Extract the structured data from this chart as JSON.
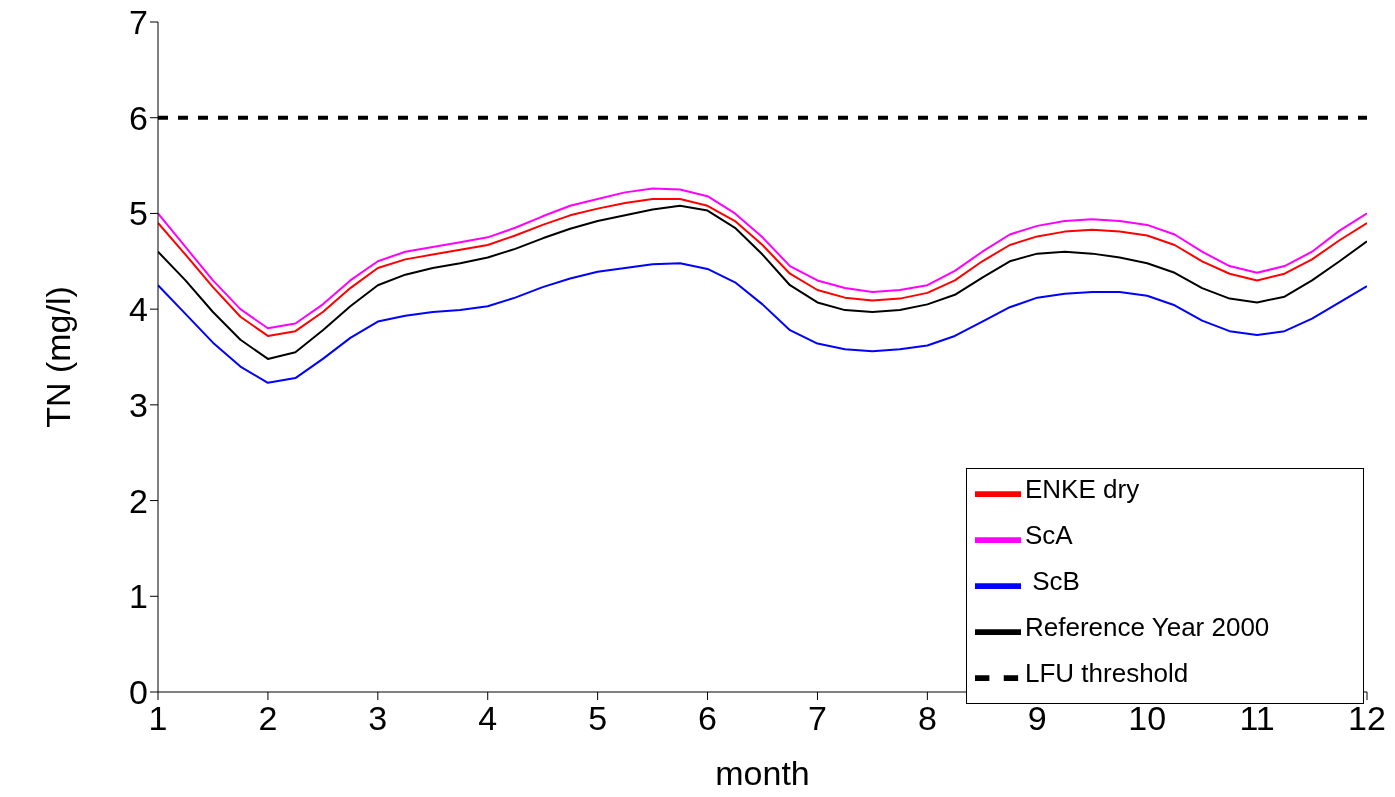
{
  "chart_data": {
    "type": "line",
    "xlabel": "month",
    "ylabel": "TN (mg/l)",
    "x": [
      1,
      1.25,
      1.5,
      1.75,
      2,
      2.25,
      2.5,
      2.75,
      3,
      3.25,
      3.5,
      3.75,
      4,
      4.25,
      4.5,
      4.75,
      5,
      5.25,
      5.5,
      5.75,
      6,
      6.25,
      6.5,
      6.75,
      7,
      7.25,
      7.5,
      7.75,
      8,
      8.25,
      8.5,
      8.75,
      9,
      9.25,
      9.5,
      9.75,
      10,
      10.25,
      10.5,
      10.75,
      11,
      11.25,
      11.5,
      11.75,
      12
    ],
    "xlim": [
      1,
      12
    ],
    "xticks": [
      1,
      2,
      3,
      4,
      5,
      6,
      7,
      8,
      9,
      10,
      11,
      12
    ],
    "ylim": [
      0,
      7
    ],
    "yticks": [
      0,
      1,
      2,
      3,
      4,
      5,
      6,
      7
    ],
    "grid": false,
    "legend": "bottom right",
    "marker": "none",
    "series": [
      {
        "name": "ENKE dry",
        "color": "#ff0000",
        "line_style": "solid",
        "values": [
          4.9,
          4.57,
          4.23,
          3.92,
          3.72,
          3.77,
          3.97,
          4.22,
          4.43,
          4.52,
          4.57,
          4.62,
          4.67,
          4.77,
          4.88,
          4.98,
          5.05,
          5.11,
          5.15,
          5.15,
          5.08,
          4.92,
          4.67,
          4.37,
          4.2,
          4.12,
          4.09,
          4.11,
          4.17,
          4.3,
          4.5,
          4.67,
          4.76,
          4.81,
          4.83,
          4.81,
          4.77,
          4.67,
          4.5,
          4.37,
          4.3,
          4.37,
          4.52,
          4.72,
          4.9
        ]
      },
      {
        "name": "ScA",
        "color": "#ff00ff",
        "line_style": "solid",
        "values": [
          5.0,
          4.65,
          4.3,
          4.0,
          3.8,
          3.85,
          4.05,
          4.3,
          4.5,
          4.6,
          4.65,
          4.7,
          4.75,
          4.85,
          4.97,
          5.08,
          5.15,
          5.22,
          5.26,
          5.25,
          5.18,
          5.0,
          4.75,
          4.45,
          4.3,
          4.22,
          4.18,
          4.2,
          4.25,
          4.4,
          4.6,
          4.78,
          4.87,
          4.92,
          4.94,
          4.92,
          4.88,
          4.78,
          4.6,
          4.45,
          4.38,
          4.45,
          4.6,
          4.82,
          5.0
        ]
      },
      {
        "name": " ScB",
        "color": "#0000ff",
        "line_style": "solid",
        "values": [
          4.25,
          3.95,
          3.65,
          3.4,
          3.23,
          3.28,
          3.48,
          3.7,
          3.87,
          3.93,
          3.97,
          3.99,
          4.03,
          4.12,
          4.23,
          4.32,
          4.39,
          4.43,
          4.47,
          4.48,
          4.42,
          4.28,
          4.05,
          3.78,
          3.64,
          3.58,
          3.56,
          3.58,
          3.62,
          3.72,
          3.87,
          4.02,
          4.12,
          4.16,
          4.18,
          4.18,
          4.14,
          4.04,
          3.88,
          3.77,
          3.73,
          3.77,
          3.9,
          4.07,
          4.24
        ]
      },
      {
        "name": "Reference Year 2000",
        "color": "#000000",
        "line_style": "solid",
        "values": [
          4.6,
          4.3,
          3.97,
          3.68,
          3.48,
          3.55,
          3.78,
          4.03,
          4.25,
          4.36,
          4.43,
          4.48,
          4.54,
          4.63,
          4.74,
          4.84,
          4.92,
          4.98,
          5.04,
          5.08,
          5.03,
          4.85,
          4.57,
          4.25,
          4.07,
          3.99,
          3.97,
          3.99,
          4.05,
          4.15,
          4.33,
          4.5,
          4.58,
          4.6,
          4.58,
          4.54,
          4.48,
          4.38,
          4.22,
          4.11,
          4.07,
          4.13,
          4.3,
          4.5,
          4.71
        ]
      },
      {
        "name": "LFU threshold",
        "color": "#000000",
        "line_style": "dashed",
        "x": [
          1,
          12
        ],
        "values": [
          6,
          6
        ]
      }
    ]
  }
}
